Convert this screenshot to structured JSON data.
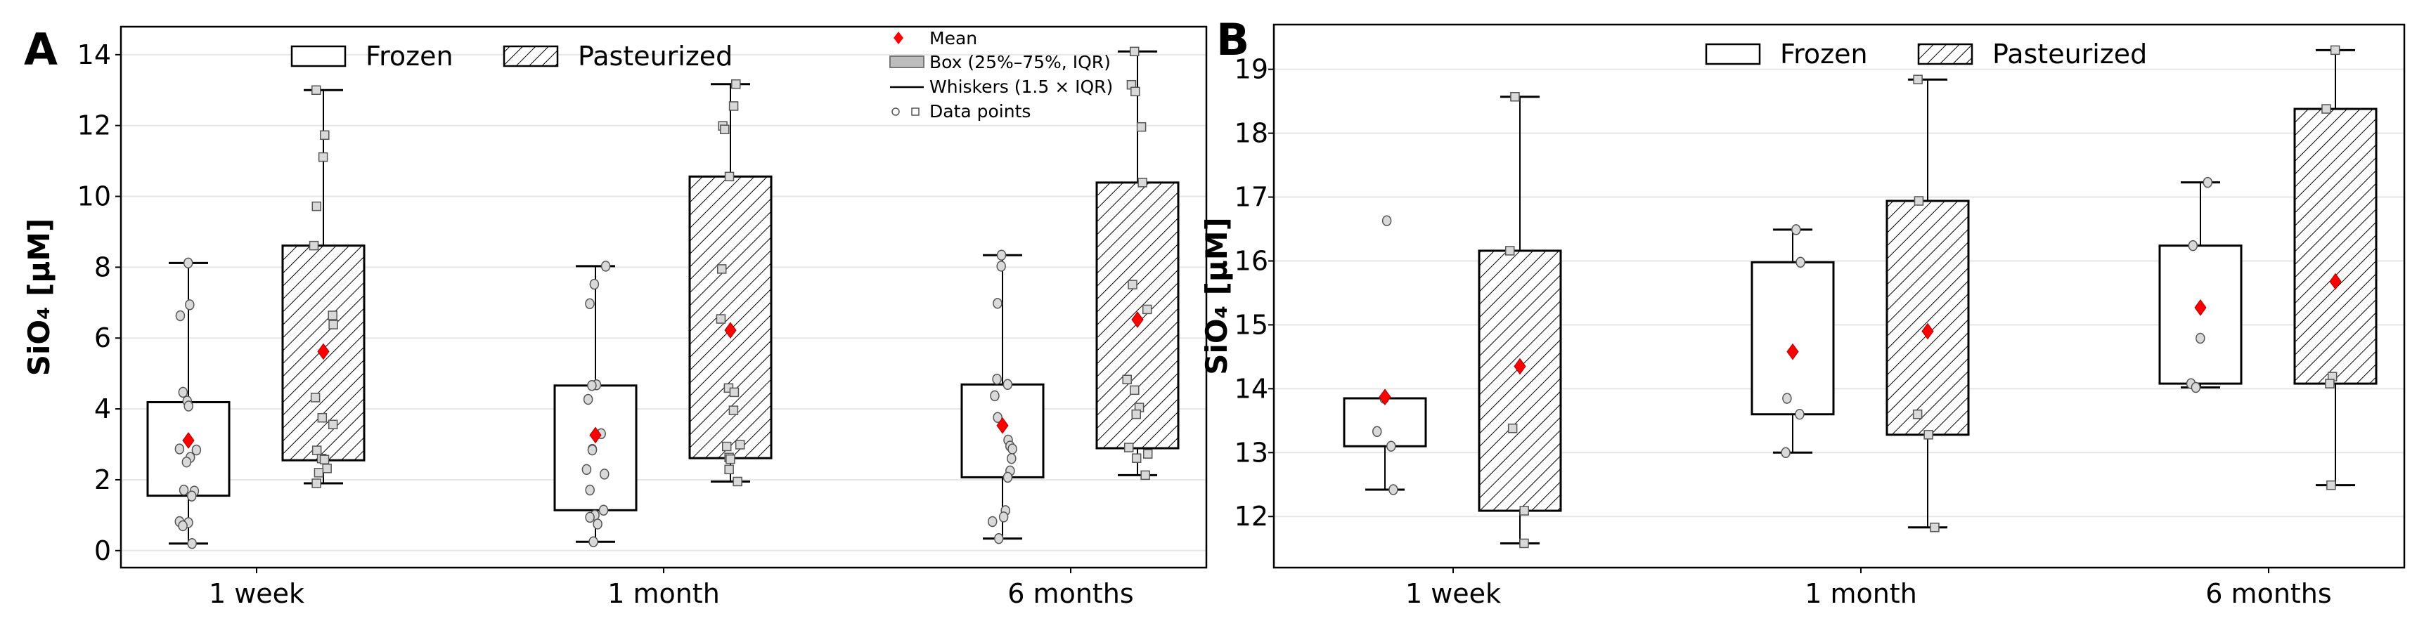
{
  "colors": {
    "mean": "#ff0000",
    "grid": "#e6e6e6",
    "point_fill": "#d9d9d9",
    "legend_box": "#bdbdbd"
  },
  "legend": {
    "frozen": "Frozen",
    "pasteurized": "Pasteurized"
  },
  "legend_extra": {
    "mean": "Mean",
    "box": "Box (25%–75%, IQR)",
    "whiskers": "Whiskers (1.5 × IQR)",
    "points": "Data points"
  },
  "chart_data": [
    {
      "panel": "A",
      "type": "box",
      "categories": [
        "1 week",
        "1 month",
        "6 months"
      ],
      "groups": [
        "Frozen",
        "Pasteurized"
      ],
      "ylabel": "SiO₄ [µM]",
      "xlabel": "",
      "ylim": [
        -0.48,
        14.79
      ],
      "yticks": [
        0,
        2,
        4,
        6,
        8,
        10,
        12,
        14
      ],
      "grid": true,
      "legend_placement": "top",
      "boxes": [
        {
          "category": "1 week",
          "group": "Frozen",
          "q1": 1.55,
          "q3": 4.19,
          "whisker_low": 0.2,
          "whisker_high": 8.12,
          "mean": 3.11,
          "points": [
            8.12,
            6.94,
            6.63,
            4.47,
            4.22,
            4.08,
            2.87,
            2.84,
            2.63,
            2.5,
            1.71,
            1.68,
            1.54,
            0.82,
            0.79,
            0.7,
            0.2
          ]
        },
        {
          "category": "1 week",
          "group": "Pasteurized",
          "q1": 2.55,
          "q3": 8.61,
          "whisker_low": 1.9,
          "whisker_high": 13.0,
          "mean": 5.62,
          "points": [
            13.0,
            11.73,
            11.11,
            9.72,
            8.61,
            6.64,
            6.38,
            4.32,
            3.75,
            3.56,
            2.83,
            2.6,
            2.57,
            2.32,
            2.2,
            1.9
          ]
        },
        {
          "category": "1 month",
          "group": "Frozen",
          "q1": 1.14,
          "q3": 4.66,
          "whisker_low": 0.25,
          "whisker_high": 8.03,
          "mean": 3.26,
          "points": [
            8.03,
            7.52,
            6.97,
            4.68,
            4.66,
            4.27,
            3.3,
            2.86,
            2.84,
            2.29,
            2.16,
            1.71,
            1.14,
            1.0,
            0.94,
            0.75,
            0.25
          ]
        },
        {
          "category": "1 month",
          "group": "Pasteurized",
          "q1": 2.61,
          "q3": 10.56,
          "whisker_low": 1.95,
          "whisker_high": 13.17,
          "mean": 6.22,
          "points": [
            13.17,
            12.55,
            11.99,
            11.89,
            10.56,
            7.95,
            6.54,
            4.59,
            4.47,
            3.96,
            2.99,
            2.94,
            2.63,
            2.58,
            2.29,
            1.95
          ]
        },
        {
          "category": "6 months",
          "group": "Frozen",
          "q1": 2.07,
          "q3": 4.69,
          "whisker_low": 0.34,
          "whisker_high": 8.34,
          "mean": 3.53,
          "points": [
            8.34,
            8.03,
            6.98,
            4.84,
            4.69,
            4.37,
            3.76,
            3.12,
            2.95,
            2.87,
            2.6,
            2.25,
            2.07,
            1.13,
            0.95,
            0.82,
            0.34
          ]
        },
        {
          "category": "6 months",
          "group": "Pasteurized",
          "q1": 2.89,
          "q3": 10.39,
          "whisker_low": 2.13,
          "whisker_high": 14.09,
          "mean": 6.52,
          "points": [
            14.09,
            13.15,
            12.96,
            11.96,
            10.39,
            7.51,
            6.81,
            4.83,
            4.53,
            4.04,
            3.85,
            2.91,
            2.73,
            2.61,
            2.13
          ]
        }
      ]
    },
    {
      "panel": "B",
      "type": "box",
      "categories": [
        "1 week",
        "1 month",
        "6 months"
      ],
      "groups": [
        "Frozen",
        "Pasteurized"
      ],
      "ylabel": "SiO₄ [µM]",
      "xlabel": "",
      "ylim": [
        11.2,
        19.7
      ],
      "yticks": [
        12,
        13,
        14,
        15,
        16,
        17,
        18,
        19
      ],
      "grid": true,
      "legend_placement": "top",
      "boxes": [
        {
          "category": "1 week",
          "group": "Frozen",
          "q1": 13.1,
          "q3": 13.85,
          "whisker_low": 12.42,
          "whisker_high": 13.85,
          "mean": 13.87,
          "points": [
            16.63,
            13.85,
            13.33,
            13.1,
            12.42
          ]
        },
        {
          "category": "1 week",
          "group": "Pasteurized",
          "q1": 12.09,
          "q3": 16.16,
          "whisker_low": 11.58,
          "whisker_high": 18.57,
          "mean": 14.35,
          "points": [
            18.57,
            16.16,
            13.38,
            12.09,
            11.58
          ]
        },
        {
          "category": "1 month",
          "group": "Frozen",
          "q1": 13.6,
          "q3": 15.98,
          "whisker_low": 13.0,
          "whisker_high": 16.49,
          "mean": 14.58,
          "points": [
            16.49,
            15.98,
            13.85,
            13.6,
            13.0
          ]
        },
        {
          "category": "1 month",
          "group": "Pasteurized",
          "q1": 13.28,
          "q3": 16.94,
          "whisker_low": 11.83,
          "whisker_high": 18.84,
          "mean": 14.9,
          "points": [
            18.84,
            16.94,
            13.6,
            13.28,
            11.83
          ]
        },
        {
          "category": "6 months",
          "group": "Frozen",
          "q1": 14.08,
          "q3": 16.24,
          "whisker_low": 14.02,
          "whisker_high": 17.23,
          "mean": 15.27,
          "points": [
            17.23,
            16.24,
            14.79,
            14.08,
            14.02
          ]
        },
        {
          "category": "6 months",
          "group": "Pasteurized",
          "q1": 14.08,
          "q3": 18.38,
          "whisker_low": 12.49,
          "whisker_high": 19.3,
          "mean": 15.68,
          "points": [
            19.3,
            18.38,
            14.19,
            14.08,
            12.49
          ]
        }
      ]
    }
  ]
}
